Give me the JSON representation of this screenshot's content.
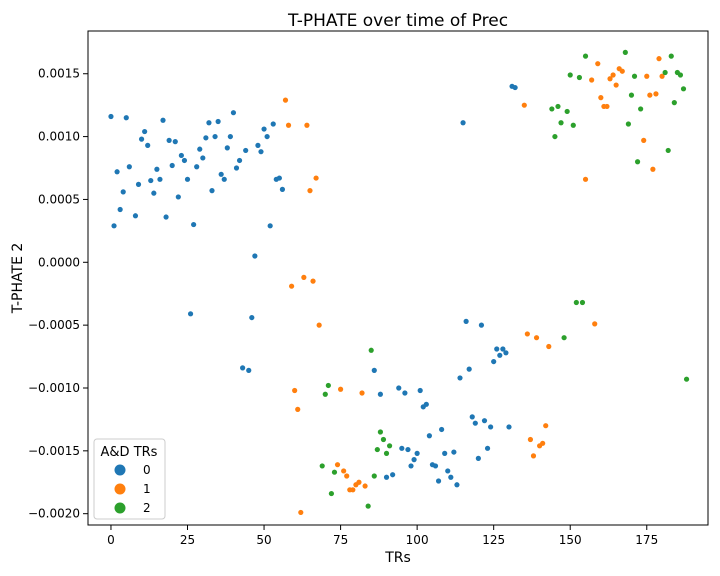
{
  "chart_data": {
    "type": "scatter",
    "title": "T-PHATE over time of Prec",
    "xlabel": "TRs",
    "ylabel": "T-PHATE 2",
    "xlim": [
      -7.5,
      195
    ],
    "ylim": [
      -0.00209,
      0.00184
    ],
    "x_ticks": [
      0,
      25,
      50,
      75,
      100,
      125,
      150,
      175
    ],
    "x_tick_labels": [
      "0",
      "25",
      "50",
      "75",
      "100",
      "125",
      "150",
      "175"
    ],
    "y_ticks": [
      -0.002,
      -0.0015,
      -0.001,
      -0.0005,
      0.0,
      0.0005,
      0.001,
      0.0015
    ],
    "y_tick_labels": [
      "−0.0020",
      "−0.0015",
      "−0.0010",
      "−0.0005",
      "0.0000",
      "0.0005",
      "0.0010",
      "0.0015"
    ],
    "grid": false,
    "legend": {
      "title": "A&D TRs",
      "location": "lower-left"
    },
    "series": [
      {
        "name": "0",
        "color": "#1f77b4",
        "points": [
          [
            0,
            0.00116
          ],
          [
            1,
            0.00029
          ],
          [
            2,
            0.00072
          ],
          [
            3,
            0.00042
          ],
          [
            4,
            0.00056
          ],
          [
            5,
            0.00115
          ],
          [
            6,
            0.00076
          ],
          [
            8,
            0.00037
          ],
          [
            9,
            0.00062
          ],
          [
            10,
            0.00098
          ],
          [
            11,
            0.00104
          ],
          [
            12,
            0.00093
          ],
          [
            13,
            0.00065
          ],
          [
            14,
            0.00055
          ],
          [
            15,
            0.00074
          ],
          [
            16,
            0.00066
          ],
          [
            17,
            0.00113
          ],
          [
            18,
            0.00036
          ],
          [
            19,
            0.00097
          ],
          [
            20,
            0.00077
          ],
          [
            21,
            0.00096
          ],
          [
            22,
            0.00052
          ],
          [
            23,
            0.00085
          ],
          [
            24,
            0.00081
          ],
          [
            25,
            0.00066
          ],
          [
            26,
            -0.00041
          ],
          [
            27,
            0.0003
          ],
          [
            28,
            0.00076
          ],
          [
            29,
            0.0009
          ],
          [
            30,
            0.00083
          ],
          [
            31,
            0.00099
          ],
          [
            32,
            0.00111
          ],
          [
            33,
            0.00057
          ],
          [
            34,
            0.001
          ],
          [
            35,
            0.00112
          ],
          [
            36,
            0.0007
          ],
          [
            37,
            0.00066
          ],
          [
            38,
            0.00091
          ],
          [
            39,
            0.001
          ],
          [
            40,
            0.00119
          ],
          [
            41,
            0.00075
          ],
          [
            42,
            0.00081
          ],
          [
            43,
            -0.00084
          ],
          [
            44,
            0.00089
          ],
          [
            45,
            -0.00086
          ],
          [
            46,
            -0.00044
          ],
          [
            47,
            5e-05
          ],
          [
            48,
            0.00093
          ],
          [
            49,
            0.00088
          ],
          [
            50,
            0.00106
          ],
          [
            51,
            0.001
          ],
          [
            52,
            0.00029
          ],
          [
            53,
            0.0011
          ],
          [
            54,
            0.00066
          ],
          [
            55,
            0.00067
          ],
          [
            56,
            0.00058
          ],
          [
            86,
            -0.00086
          ],
          [
            88,
            -0.00105
          ],
          [
            90,
            -0.00171
          ],
          [
            92,
            -0.00169
          ],
          [
            94,
            -0.001
          ],
          [
            95,
            -0.00148
          ],
          [
            96,
            -0.00104
          ],
          [
            97,
            -0.00149
          ],
          [
            98,
            -0.00162
          ],
          [
            99,
            -0.00157
          ],
          [
            100,
            -0.00152
          ],
          [
            101,
            -0.00102
          ],
          [
            102,
            -0.00115
          ],
          [
            103,
            -0.00113
          ],
          [
            104,
            -0.00138
          ],
          [
            105,
            -0.00161
          ],
          [
            106,
            -0.00162
          ],
          [
            107,
            -0.00174
          ],
          [
            108,
            -0.00133
          ],
          [
            109,
            -0.00152
          ],
          [
            110,
            -0.00166
          ],
          [
            111,
            -0.00171
          ],
          [
            112,
            -0.00151
          ],
          [
            113,
            -0.00177
          ],
          [
            114,
            -0.00092
          ],
          [
            115,
            0.00111
          ],
          [
            116,
            -0.00047
          ],
          [
            117,
            -0.00085
          ],
          [
            118,
            -0.00123
          ],
          [
            119,
            -0.00128
          ],
          [
            120,
            -0.00156
          ],
          [
            121,
            -0.0005
          ],
          [
            122,
            -0.00126
          ],
          [
            123,
            -0.00148
          ],
          [
            124,
            -0.00131
          ],
          [
            125,
            -0.00079
          ],
          [
            126,
            -0.00069
          ],
          [
            127,
            -0.00074
          ],
          [
            128,
            -0.00069
          ],
          [
            129,
            -0.00072
          ],
          [
            130,
            -0.00131
          ],
          [
            131,
            0.0014
          ],
          [
            132,
            0.00139
          ]
        ]
      },
      {
        "name": "1",
        "color": "#ff7f0e",
        "points": [
          [
            57,
            0.00129
          ],
          [
            58,
            0.00109
          ],
          [
            59,
            -0.00019
          ],
          [
            60,
            -0.00102
          ],
          [
            61,
            -0.00117
          ],
          [
            62,
            -0.00199
          ],
          [
            63,
            -0.00012
          ],
          [
            64,
            0.00109
          ],
          [
            65,
            0.00057
          ],
          [
            66,
            -0.00015
          ],
          [
            67,
            0.00067
          ],
          [
            68,
            -0.0005
          ],
          [
            74,
            -0.00161
          ],
          [
            75,
            -0.00101
          ],
          [
            76,
            -0.00166
          ],
          [
            77,
            -0.0017
          ],
          [
            78,
            -0.00181
          ],
          [
            79,
            -0.00181
          ],
          [
            80,
            -0.00177
          ],
          [
            81,
            -0.00175
          ],
          [
            82,
            -0.00104
          ],
          [
            83,
            -0.00178
          ],
          [
            135,
            0.00125
          ],
          [
            136,
            -0.00057
          ],
          [
            137,
            -0.00141
          ],
          [
            138,
            -0.00154
          ],
          [
            139,
            -0.0006
          ],
          [
            140,
            -0.00146
          ],
          [
            141,
            -0.00144
          ],
          [
            142,
            -0.0013
          ],
          [
            143,
            -0.00067
          ],
          [
            155,
            0.00066
          ],
          [
            157,
            0.00145
          ],
          [
            158,
            -0.00049
          ],
          [
            159,
            0.00158
          ],
          [
            160,
            0.00131
          ],
          [
            161,
            0.00124
          ],
          [
            162,
            0.00124
          ],
          [
            163,
            0.00146
          ],
          [
            164,
            0.00149
          ],
          [
            165,
            0.00141
          ],
          [
            166,
            0.00154
          ],
          [
            167,
            0.00152
          ],
          [
            174,
            0.00097
          ],
          [
            175,
            0.00148
          ],
          [
            176,
            0.00133
          ],
          [
            177,
            0.00074
          ],
          [
            178,
            0.00134
          ],
          [
            179,
            0.00162
          ],
          [
            180,
            0.00148
          ]
        ]
      },
      {
        "name": "2",
        "color": "#2ca02c",
        "points": [
          [
            69,
            -0.00162
          ],
          [
            70,
            -0.00105
          ],
          [
            71,
            -0.00098
          ],
          [
            72,
            -0.00184
          ],
          [
            73,
            -0.00167
          ],
          [
            84,
            -0.00194
          ],
          [
            85,
            -0.0007
          ],
          [
            86,
            -0.0017
          ],
          [
            87,
            -0.00149
          ],
          [
            88,
            -0.00135
          ],
          [
            89,
            -0.00141
          ],
          [
            90,
            -0.00152
          ],
          [
            91,
            -0.00146
          ],
          [
            144,
            0.00122
          ],
          [
            145,
            0.001
          ],
          [
            146,
            0.00124
          ],
          [
            147,
            0.00111
          ],
          [
            148,
            -0.0006
          ],
          [
            149,
            0.0012
          ],
          [
            150,
            0.00149
          ],
          [
            151,
            0.00109
          ],
          [
            152,
            -0.00032
          ],
          [
            153,
            0.00147
          ],
          [
            154,
            -0.00032
          ],
          [
            155,
            0.00164
          ],
          [
            168,
            0.00167
          ],
          [
            169,
            0.0011
          ],
          [
            170,
            0.00133
          ],
          [
            171,
            0.00148
          ],
          [
            172,
            0.0008
          ],
          [
            173,
            0.00122
          ],
          [
            181,
            0.00151
          ],
          [
            182,
            0.00089
          ],
          [
            183,
            0.00164
          ],
          [
            184,
            0.00127
          ],
          [
            185,
            0.00151
          ],
          [
            186,
            0.00149
          ],
          [
            187,
            0.00138
          ],
          [
            188,
            -0.00093
          ]
        ]
      }
    ]
  }
}
